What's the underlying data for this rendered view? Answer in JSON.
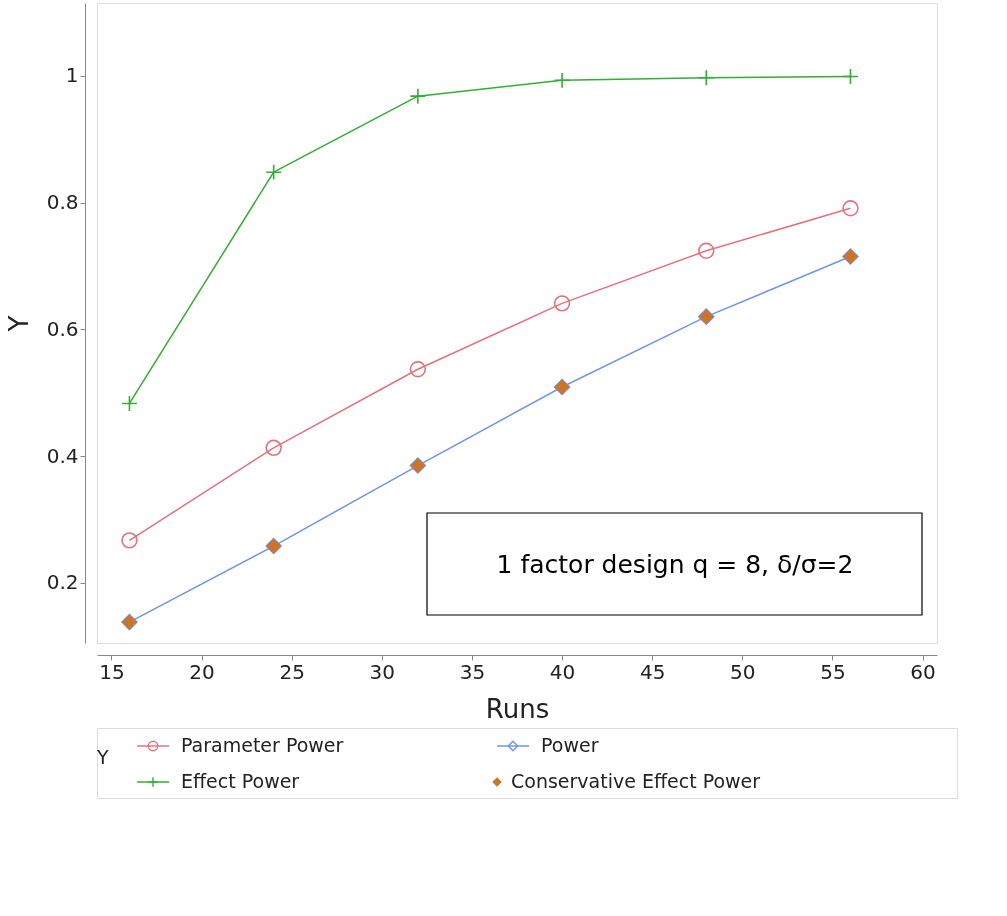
{
  "chart_data": {
    "type": "line",
    "xlabel": "Runs",
    "ylabel": "Y",
    "legend_title": "Y",
    "legend": "bottom",
    "grid": false,
    "x": [
      16,
      24,
      32,
      40,
      48,
      56
    ],
    "xlim": [
      14.2,
      60.8
    ],
    "xticks": [
      15,
      20,
      25,
      30,
      35,
      40,
      45,
      50,
      55,
      60
    ],
    "ylim": [
      0.105,
      1.115
    ],
    "yticks": [
      0.2,
      0.4,
      0.6,
      0.8,
      1
    ],
    "annotations": [
      "1 factor design q = 8, δ/σ=2"
    ],
    "series": [
      {
        "name": "Parameter Power",
        "color": "#e8707c",
        "marker": "circle",
        "type": "line",
        "values": [
          0.267,
          0.413,
          0.537,
          0.641,
          0.724,
          0.791
        ]
      },
      {
        "name": "Power",
        "color": "#6f96e8",
        "marker": "diamond",
        "type": "line",
        "values": [
          0.138,
          0.258,
          0.385,
          0.509,
          0.62,
          0.715
        ]
      },
      {
        "name": "Effect Power",
        "color": "#30b030",
        "marker": "cross",
        "type": "line",
        "values": [
          0.483,
          0.848,
          0.968,
          0.993,
          0.997,
          0.999
        ]
      },
      {
        "name": "Conservative Effect Power",
        "color": "#cc7428",
        "marker": "diamond",
        "type": "scatter",
        "values": [
          0.138,
          0.258,
          0.385,
          0.509,
          0.62,
          0.715
        ]
      }
    ]
  }
}
